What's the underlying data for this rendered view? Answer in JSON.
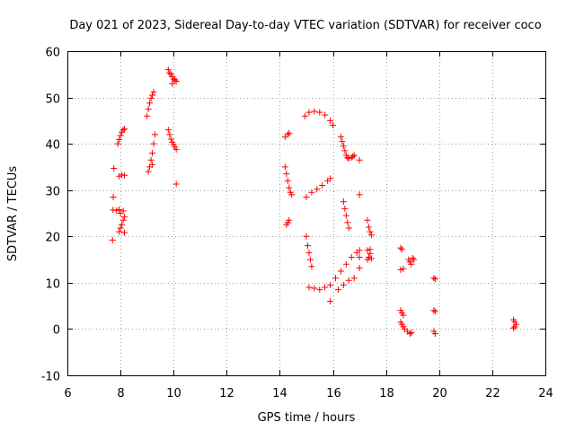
{
  "chart_data": {
    "type": "scatter",
    "title": "Day 021 of 2023, Sidereal Day-to-day VTEC variation (SDTVAR) for receiver coco",
    "xlabel": "GPS time / hours",
    "ylabel": "SDTVAR / TECUs",
    "xlim": [
      6,
      24
    ],
    "ylim": [
      -10,
      60
    ],
    "xticks": [
      "6",
      "8",
      "10",
      "12",
      "14",
      "16",
      "18",
      "20",
      "22",
      "24"
    ],
    "yticks": [
      "-10",
      "0",
      "10",
      "20",
      "30",
      "40",
      "50",
      "60"
    ],
    "grid": true,
    "marker": "+",
    "color": "#ff0000",
    "points": [
      [
        7.7,
        19.2
      ],
      [
        7.72,
        25.7
      ],
      [
        7.73,
        28.5
      ],
      [
        7.75,
        34.7
      ],
      [
        7.85,
        25.6
      ],
      [
        7.9,
        40.0
      ],
      [
        7.95,
        40.9
      ],
      [
        8.0,
        41.8
      ],
      [
        8.05,
        42.5
      ],
      [
        8.1,
        43.0
      ],
      [
        8.15,
        43.2
      ],
      [
        7.95,
        33.0
      ],
      [
        8.05,
        33.3
      ],
      [
        8.15,
        33.2
      ],
      [
        7.95,
        21.0
      ],
      [
        8.0,
        21.8
      ],
      [
        8.05,
        22.5
      ],
      [
        8.1,
        23.5
      ],
      [
        8.15,
        24.2
      ],
      [
        8.1,
        25.5
      ],
      [
        8.15,
        20.8
      ],
      [
        8.0,
        25.0
      ],
      [
        7.95,
        25.8
      ],
      [
        9.0,
        46.0
      ],
      [
        9.05,
        47.5
      ],
      [
        9.1,
        48.8
      ],
      [
        9.15,
        49.8
      ],
      [
        9.2,
        50.5
      ],
      [
        9.25,
        51.2
      ],
      [
        9.05,
        34.0
      ],
      [
        9.1,
        35.0
      ],
      [
        9.15,
        36.5
      ],
      [
        9.2,
        38.0
      ],
      [
        9.25,
        40.0
      ],
      [
        9.3,
        42.0
      ],
      [
        9.2,
        35.5
      ],
      [
        9.8,
        56.0
      ],
      [
        9.85,
        55.3
      ],
      [
        9.9,
        55.0
      ],
      [
        9.95,
        54.5
      ],
      [
        10.0,
        54.0
      ],
      [
        10.05,
        53.8
      ],
      [
        10.1,
        53.5
      ],
      [
        9.95,
        53.0
      ],
      [
        9.8,
        43.0
      ],
      [
        9.85,
        42.0
      ],
      [
        9.9,
        41.0
      ],
      [
        9.95,
        40.3
      ],
      [
        10.0,
        39.8
      ],
      [
        10.05,
        39.3
      ],
      [
        10.1,
        38.8
      ],
      [
        10.1,
        31.3
      ],
      [
        14.2,
        41.5
      ],
      [
        14.3,
        42.0
      ],
      [
        14.35,
        42.3
      ],
      [
        14.2,
        35.0
      ],
      [
        14.25,
        33.5
      ],
      [
        14.3,
        32.0
      ],
      [
        14.35,
        30.5
      ],
      [
        14.4,
        29.5
      ],
      [
        14.45,
        29.0
      ],
      [
        14.25,
        22.5
      ],
      [
        14.3,
        23.0
      ],
      [
        14.35,
        23.5
      ],
      [
        14.95,
        46.0
      ],
      [
        15.1,
        46.8
      ],
      [
        15.3,
        47.0
      ],
      [
        15.5,
        46.8
      ],
      [
        15.7,
        46.2
      ],
      [
        15.9,
        45.0
      ],
      [
        16.0,
        44.0
      ],
      [
        15.0,
        28.5
      ],
      [
        15.2,
        29.5
      ],
      [
        15.4,
        30.2
      ],
      [
        15.6,
        31.0
      ],
      [
        15.8,
        32.0
      ],
      [
        15.9,
        32.5
      ],
      [
        15.0,
        20.0
      ],
      [
        15.05,
        18.0
      ],
      [
        15.1,
        16.5
      ],
      [
        15.15,
        15.0
      ],
      [
        15.2,
        13.5
      ],
      [
        15.1,
        9.0
      ],
      [
        15.3,
        8.8
      ],
      [
        15.5,
        8.5
      ],
      [
        15.7,
        9.0
      ],
      [
        15.9,
        9.5
      ],
      [
        15.9,
        6.0
      ],
      [
        16.3,
        41.5
      ],
      [
        16.35,
        40.5
      ],
      [
        16.4,
        39.5
      ],
      [
        16.45,
        38.5
      ],
      [
        16.5,
        37.5
      ],
      [
        16.55,
        37.0
      ],
      [
        16.6,
        36.8
      ],
      [
        16.7,
        37.0
      ],
      [
        16.75,
        37.3
      ],
      [
        16.8,
        37.5
      ],
      [
        16.4,
        27.5
      ],
      [
        16.45,
        26.0
      ],
      [
        16.5,
        24.5
      ],
      [
        16.55,
        23.0
      ],
      [
        16.6,
        21.8
      ],
      [
        16.1,
        11.0
      ],
      [
        16.3,
        12.5
      ],
      [
        16.5,
        14.0
      ],
      [
        16.7,
        15.5
      ],
      [
        16.9,
        16.5
      ],
      [
        16.2,
        8.5
      ],
      [
        16.4,
        9.5
      ],
      [
        16.6,
        10.5
      ],
      [
        16.8,
        11.0
      ],
      [
        17.0,
        36.5
      ],
      [
        17.0,
        29.0
      ],
      [
        17.0,
        17.0
      ],
      [
        17.0,
        15.5
      ],
      [
        17.0,
        13.2
      ],
      [
        17.3,
        23.5
      ],
      [
        17.35,
        22.0
      ],
      [
        17.4,
        21.0
      ],
      [
        17.45,
        20.3
      ],
      [
        17.3,
        17.0
      ],
      [
        17.4,
        17.2
      ],
      [
        17.3,
        15.0
      ],
      [
        17.35,
        15.5
      ],
      [
        17.4,
        16.3
      ],
      [
        17.45,
        15.2
      ],
      [
        18.55,
        17.5
      ],
      [
        18.6,
        17.2
      ],
      [
        18.55,
        12.8
      ],
      [
        18.65,
        13.0
      ],
      [
        18.55,
        4.0
      ],
      [
        18.6,
        3.5
      ],
      [
        18.65,
        3.0
      ],
      [
        18.55,
        1.5
      ],
      [
        18.6,
        1.0
      ],
      [
        18.65,
        0.5
      ],
      [
        18.7,
        0.0
      ],
      [
        18.8,
        -0.5
      ],
      [
        18.9,
        -1.0
      ],
      [
        18.95,
        -0.8
      ],
      [
        18.85,
        15.0
      ],
      [
        18.9,
        14.5
      ],
      [
        18.95,
        14.0
      ],
      [
        19.0,
        15.3
      ],
      [
        19.05,
        15.0
      ],
      [
        19.8,
        11.0
      ],
      [
        19.85,
        10.8
      ],
      [
        19.8,
        4.0
      ],
      [
        19.85,
        3.8
      ],
      [
        19.8,
        -0.5
      ],
      [
        19.85,
        -1.0
      ],
      [
        22.8,
        2.0
      ],
      [
        22.85,
        1.5
      ],
      [
        22.9,
        1.0
      ],
      [
        22.85,
        0.5
      ],
      [
        22.8,
        0.2
      ]
    ]
  }
}
